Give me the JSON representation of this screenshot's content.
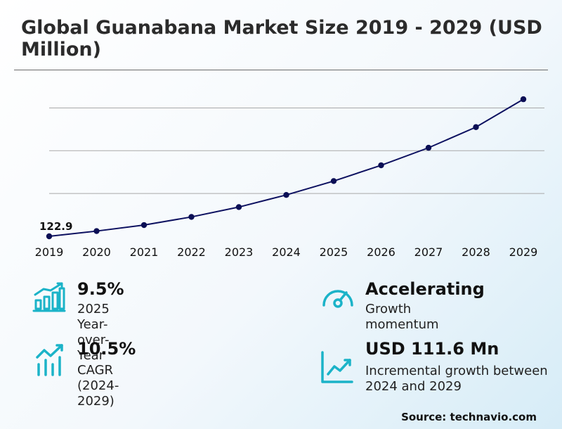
{
  "title": "Global Guanabana Market Size 2019 - 2029 (USD Million)",
  "chart_data": {
    "type": "line",
    "title": "Global Guanabana Market Size 2019 - 2029 (USD Million)",
    "xlabel": "",
    "ylabel": "USD Million",
    "x": [
      "2019",
      "2020",
      "2021",
      "2022",
      "2023",
      "2024",
      "2025",
      "2026",
      "2027",
      "2028",
      "2029"
    ],
    "series": [
      {
        "name": "Market Size",
        "values": [
          122.9,
          129.0,
          136.0,
          145.5,
          157.0,
          171.1,
          187.3,
          205.7,
          226.1,
          250.2,
          282.7
        ]
      }
    ],
    "ylim": [
      122.9,
      300
    ],
    "grid": true,
    "data_labels": [
      {
        "index": 0,
        "text": "122.9"
      }
    ],
    "colors": {
      "line": "#0d1160",
      "marker": "#0a0e55",
      "grid": "#a9a9a9"
    }
  },
  "kpis": [
    {
      "value": "9.5%",
      "label": "2025 Year-over-Year",
      "icon": "bar-chart-growth-icon"
    },
    {
      "value": "Accelerating",
      "label": "Growth momentum",
      "icon": "speedometer-icon"
    },
    {
      "value": "10.5%",
      "label": "CAGR (2024-2029)",
      "icon": "trend-line-bars-icon"
    },
    {
      "value": "USD 111.6 Mn",
      "label": "Incremental growth between 2024 and 2029",
      "icon": "area-trend-icon"
    }
  ],
  "source": "Source: technavio.com",
  "colors": {
    "accent": "#1bb3c8"
  }
}
